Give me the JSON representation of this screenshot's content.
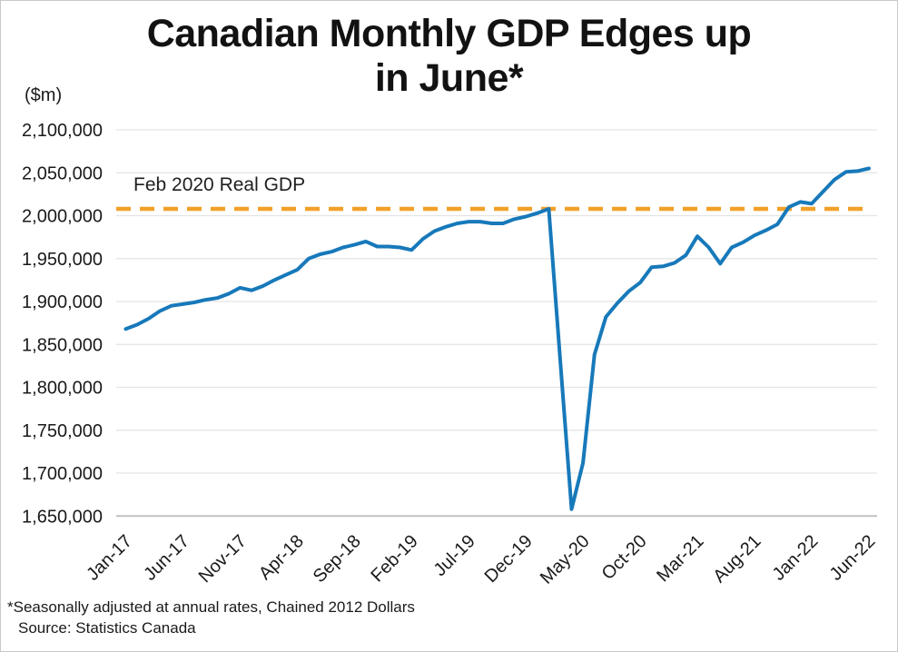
{
  "figure": {
    "title_line1": "Canadian Monthly GDP Edges up",
    "title_line2": "in June*",
    "unit_label": "($m)",
    "footnote": "*Seasonally adjusted at annual rates, Chained 2012 Dollars",
    "source": "Source: Statistics Canada"
  },
  "chart_data": {
    "type": "line",
    "title": "Canadian Monthly GDP Edges up in June*",
    "xlabel": "",
    "ylabel": "($m)",
    "grid": "horizontal",
    "legend": "none",
    "ylim": [
      1650000,
      2100000
    ],
    "y_ticks": [
      2100000,
      2050000,
      2000000,
      1950000,
      1900000,
      1850000,
      1800000,
      1750000,
      1700000,
      1650000
    ],
    "x": [
      "Jan-17",
      "Feb-17",
      "Mar-17",
      "Apr-17",
      "May-17",
      "Jun-17",
      "Jul-17",
      "Aug-17",
      "Sep-17",
      "Oct-17",
      "Nov-17",
      "Dec-17",
      "Jan-18",
      "Feb-18",
      "Mar-18",
      "Apr-18",
      "May-18",
      "Jun-18",
      "Jul-18",
      "Aug-18",
      "Sep-18",
      "Oct-18",
      "Nov-18",
      "Dec-18",
      "Jan-19",
      "Feb-19",
      "Mar-19",
      "Apr-19",
      "May-19",
      "Jun-19",
      "Jul-19",
      "Aug-19",
      "Sep-19",
      "Oct-19",
      "Nov-19",
      "Dec-19",
      "Jan-20",
      "Feb-20",
      "Mar-20",
      "Apr-20",
      "May-20",
      "Jun-20",
      "Jul-20",
      "Aug-20",
      "Sep-20",
      "Oct-20",
      "Nov-20",
      "Dec-20",
      "Jan-21",
      "Feb-21",
      "Mar-21",
      "Apr-21",
      "May-21",
      "Jun-21",
      "Jul-21",
      "Aug-21",
      "Sep-21",
      "Oct-21",
      "Nov-21",
      "Dec-21",
      "Jan-22",
      "Feb-22",
      "Mar-22",
      "Apr-22",
      "May-22",
      "Jun-22"
    ],
    "x_tick_indices": [
      0,
      5,
      10,
      15,
      20,
      25,
      30,
      35,
      40,
      45,
      50,
      55,
      60,
      65
    ],
    "x_tick_labels": [
      "Jan-17",
      "Jun-17",
      "Nov-17",
      "Apr-18",
      "Sep-18",
      "Feb-19",
      "Jul-19",
      "Dec-19",
      "May-20",
      "Oct-20",
      "Mar-21",
      "Aug-21",
      "Jan-22",
      "Jun-22"
    ],
    "series": [
      {
        "name": "Monthly GDP ($m)",
        "values": [
          1868000,
          1873000,
          1880000,
          1889000,
          1895000,
          1897000,
          1899000,
          1902000,
          1904000,
          1909000,
          1916000,
          1913000,
          1918000,
          1925000,
          1931000,
          1937000,
          1950000,
          1955000,
          1958000,
          1963000,
          1966000,
          1970000,
          1964000,
          1964000,
          1963000,
          1960000,
          1973000,
          1982000,
          1987000,
          1991000,
          1993000,
          1993000,
          1991000,
          1991000,
          1996000,
          1999000,
          2003000,
          2008000,
          1833000,
          1658000,
          1712000,
          1838000,
          1882000,
          1898000,
          1912000,
          1922000,
          1940000,
          1941000,
          1945000,
          1954000,
          1976000,
          1963000,
          1944000,
          1963000,
          1969000,
          1977000,
          1983000,
          1990000,
          2010000,
          2016000,
          2014000,
          2028000,
          2042000,
          2051000,
          2052000,
          2055000
        ]
      }
    ],
    "reference_line": {
      "label": "Feb 2020 Real GDP",
      "value": 2008000,
      "style": "dashed"
    },
    "colors": {
      "line": "#1779BA",
      "reference": "#F2A029",
      "grid": "#E5E5E5",
      "axis": "#C1C1C1",
      "text": "#1A1A1A"
    }
  }
}
